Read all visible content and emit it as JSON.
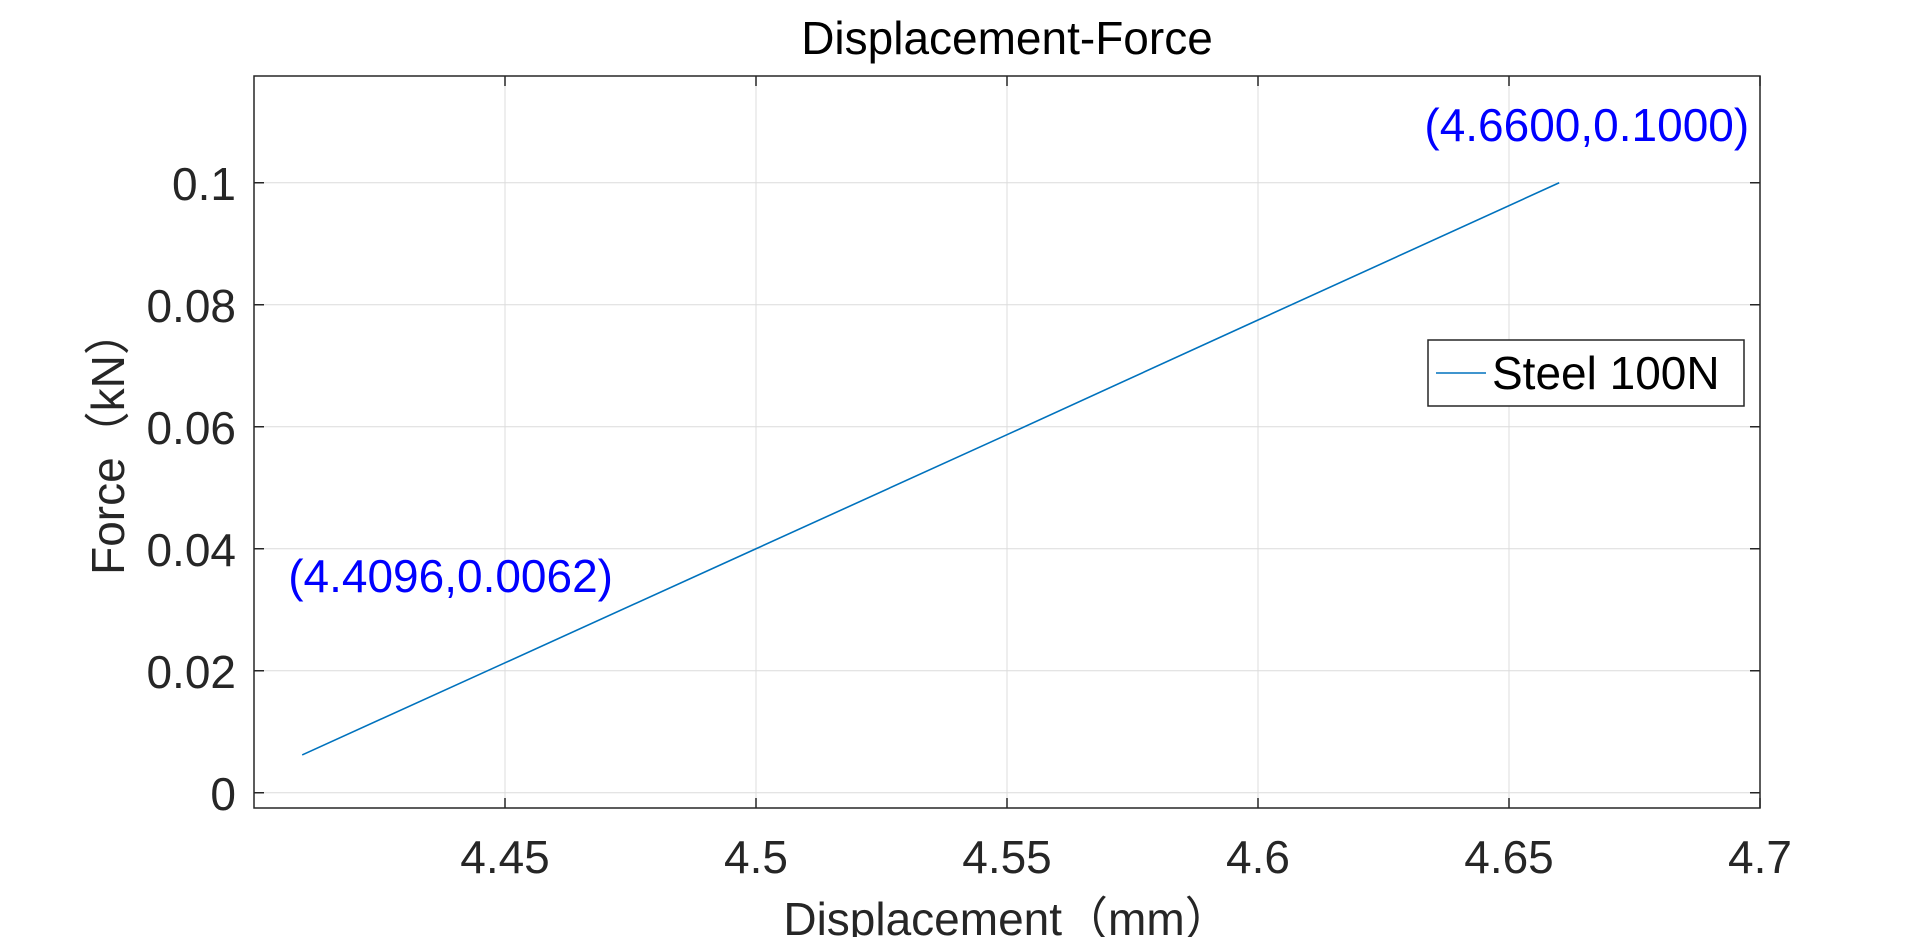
{
  "chart_data": {
    "type": "line",
    "title": "Displacement-Force",
    "xlabel": "Displacement（mm）",
    "ylabel": "Force（kN）",
    "xlim": [
      4.4,
      4.7
    ],
    "ylim": [
      -0.0025,
      0.1175
    ],
    "x_ticks": [
      4.45,
      4.5,
      4.55,
      4.6,
      4.65,
      4.7
    ],
    "x_tick_labels": [
      "4.45",
      "4.5",
      "4.55",
      "4.6",
      "4.65",
      "4.7"
    ],
    "y_ticks": [
      0,
      0.02,
      0.04,
      0.06,
      0.08,
      0.1
    ],
    "y_tick_labels": [
      "0",
      "0.02",
      "0.04",
      "0.06",
      "0.08",
      "0.1"
    ],
    "grid": true,
    "legend_position": "right",
    "series": [
      {
        "name": "Steel 100N",
        "color": "#0072bd",
        "x": [
          4.4096,
          4.45,
          4.5,
          4.55,
          4.6,
          4.66
        ],
        "y": [
          0.0062,
          0.0213,
          0.04,
          0.0587,
          0.0775,
          0.1
        ]
      }
    ],
    "annotations": [
      {
        "text": "(4.4096,0.0062)",
        "x": 4.4096,
        "y": 0.0062,
        "color": "#0000ff"
      },
      {
        "text": "(4.6600,0.1000)",
        "x": 4.66,
        "y": 0.1,
        "color": "#0000ff"
      }
    ]
  }
}
